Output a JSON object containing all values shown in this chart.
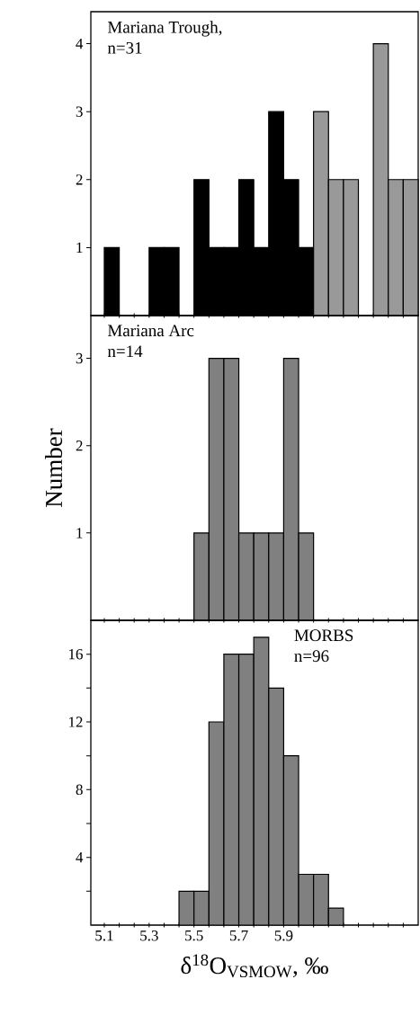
{
  "chart_data": [
    {
      "type": "histogram",
      "annotations": [
        "Mariana Trough,",
        "n=31"
      ],
      "bins": [
        5.1,
        5.1667,
        5.2333,
        5.3,
        5.3667,
        5.4333,
        5.5,
        5.5667,
        5.6333,
        5.7,
        5.7667,
        5.8333,
        5.9,
        5.9667,
        6.0333,
        6.1,
        6.1667,
        6.2333,
        6.3,
        6.3667,
        6.4333,
        6.5
      ],
      "series": [
        {
          "color": "#000000",
          "values": [
            1,
            0,
            0,
            1,
            1,
            0,
            2,
            1,
            1,
            2,
            1,
            3,
            2,
            1,
            null,
            null,
            null,
            null,
            null,
            null,
            null
          ]
        },
        {
          "color": "#999999",
          "values": [
            null,
            null,
            null,
            null,
            null,
            null,
            null,
            null,
            null,
            null,
            null,
            null,
            null,
            null,
            3,
            2,
            2,
            0,
            4,
            2,
            2
          ]
        }
      ],
      "xlim": [
        5.04,
        6.5
      ],
      "ylim": [
        0,
        4.47
      ],
      "yticks": [
        1,
        2,
        3,
        4
      ],
      "xticks": [
        {
          "value": 5.1,
          "label": null
        },
        {
          "value": 5.1667,
          "label": null
        },
        {
          "value": 5.2333,
          "label": null
        },
        {
          "value": 5.3,
          "label": null
        },
        {
          "value": 5.3667,
          "label": null
        },
        {
          "value": 5.4333,
          "label": null
        },
        {
          "value": 5.5,
          "label": null
        },
        {
          "value": 5.5667,
          "label": null
        },
        {
          "value": 5.6333,
          "label": null
        },
        {
          "value": 5.7,
          "label": null
        },
        {
          "value": 5.7667,
          "label": null
        },
        {
          "value": 5.8333,
          "label": null
        },
        {
          "value": 5.9,
          "label": null
        },
        {
          "value": 5.9667,
          "label": null
        },
        {
          "value": 6.0333,
          "label": null
        },
        {
          "value": 6.1,
          "label": null
        },
        {
          "value": 6.1667,
          "label": null
        },
        {
          "value": 6.2333,
          "label": null
        },
        {
          "value": 6.3,
          "label": null
        },
        {
          "value": 6.3667,
          "label": null
        },
        {
          "value": 6.4333,
          "label": null
        }
      ],
      "tick_labels": "y"
    },
    {
      "type": "histogram",
      "annotations": [
        "Mariana Arc",
        "n=14"
      ],
      "ylabel": "Number",
      "bins": [
        5.5,
        5.5667,
        5.6333,
        5.7,
        5.7667,
        5.8333,
        5.9,
        5.9667,
        6.0333
      ],
      "series": [
        {
          "color": "#808080",
          "values": [
            1,
            3,
            3,
            1,
            1,
            1,
            3,
            1
          ]
        }
      ],
      "xlim": [
        5.04,
        6.5
      ],
      "ylim": [
        0,
        3.49
      ],
      "yticks": [
        1,
        2,
        3
      ],
      "xticks": [
        {
          "value": 5.1,
          "label": null
        },
        {
          "value": 5.1667,
          "label": null
        },
        {
          "value": 5.2333,
          "label": null
        },
        {
          "value": 5.3,
          "label": null
        },
        {
          "value": 5.3667,
          "label": null
        },
        {
          "value": 5.4333,
          "label": null
        },
        {
          "value": 5.5,
          "label": null
        },
        {
          "value": 5.5667,
          "label": null
        },
        {
          "value": 5.6333,
          "label": null
        },
        {
          "value": 5.7,
          "label": null
        },
        {
          "value": 5.7667,
          "label": null
        },
        {
          "value": 5.8333,
          "label": null
        },
        {
          "value": 5.9,
          "label": null
        },
        {
          "value": 5.9667,
          "label": null
        },
        {
          "value": 6.0333,
          "label": null
        },
        {
          "value": 6.1,
          "label": null
        },
        {
          "value": 6.1667,
          "label": null
        },
        {
          "value": 6.2333,
          "label": null
        },
        {
          "value": 6.3,
          "label": null
        },
        {
          "value": 6.3667,
          "label": null
        },
        {
          "value": 6.4333,
          "label": null
        }
      ],
      "tick_labels": "y"
    },
    {
      "type": "histogram",
      "annotations": [
        "MORBS",
        "n=96"
      ],
      "xlabel": "δ$^{18}$O$_{VSMOW}$, ‰",
      "bins": [
        5.4333,
        5.5,
        5.5667,
        5.6333,
        5.7,
        5.7667,
        5.8333,
        5.9,
        5.9667,
        6.0333,
        6.1,
        6.1667
      ],
      "series": [
        {
          "color": "#808080",
          "values": [
            2,
            2,
            12,
            16,
            16,
            17,
            14,
            10,
            3,
            3,
            1
          ]
        }
      ],
      "xlim": [
        5.04,
        6.5
      ],
      "ylim": [
        0,
        18
      ],
      "yticks": [
        {
          "value": 2,
          "label": null
        },
        4,
        {
          "value": 6,
          "label": null
        },
        8,
        {
          "value": 10,
          "label": null
        },
        12,
        {
          "value": 14,
          "label": null
        },
        16
      ],
      "xticks": [
        {
          "value": 5.1,
          "label": "5.1"
        },
        {
          "value": 5.1667,
          "label": null
        },
        {
          "value": 5.2333,
          "label": null
        },
        {
          "value": 5.3,
          "label": "5.3"
        },
        {
          "value": 5.3667,
          "label": null
        },
        {
          "value": 5.4333,
          "label": null
        },
        {
          "value": 5.5,
          "label": "5.5"
        },
        {
          "value": 5.5667,
          "label": null
        },
        {
          "value": 5.6333,
          "label": null
        },
        {
          "value": 5.7,
          "label": "5.7"
        },
        {
          "value": 5.7667,
          "label": null
        },
        {
          "value": 5.8333,
          "label": null
        },
        {
          "value": 5.9,
          "label": "5.9"
        },
        {
          "value": 5.9667,
          "label": null
        },
        {
          "value": 6.0333,
          "label": null
        },
        {
          "value": 6.1,
          "label": null
        },
        {
          "value": 6.1667,
          "label": null
        },
        {
          "value": 6.2333,
          "label": null
        },
        {
          "value": 6.3,
          "label": null
        },
        {
          "value": 6.3667,
          "label": null
        },
        {
          "value": 6.4333,
          "label": null
        }
      ]
    }
  ]
}
